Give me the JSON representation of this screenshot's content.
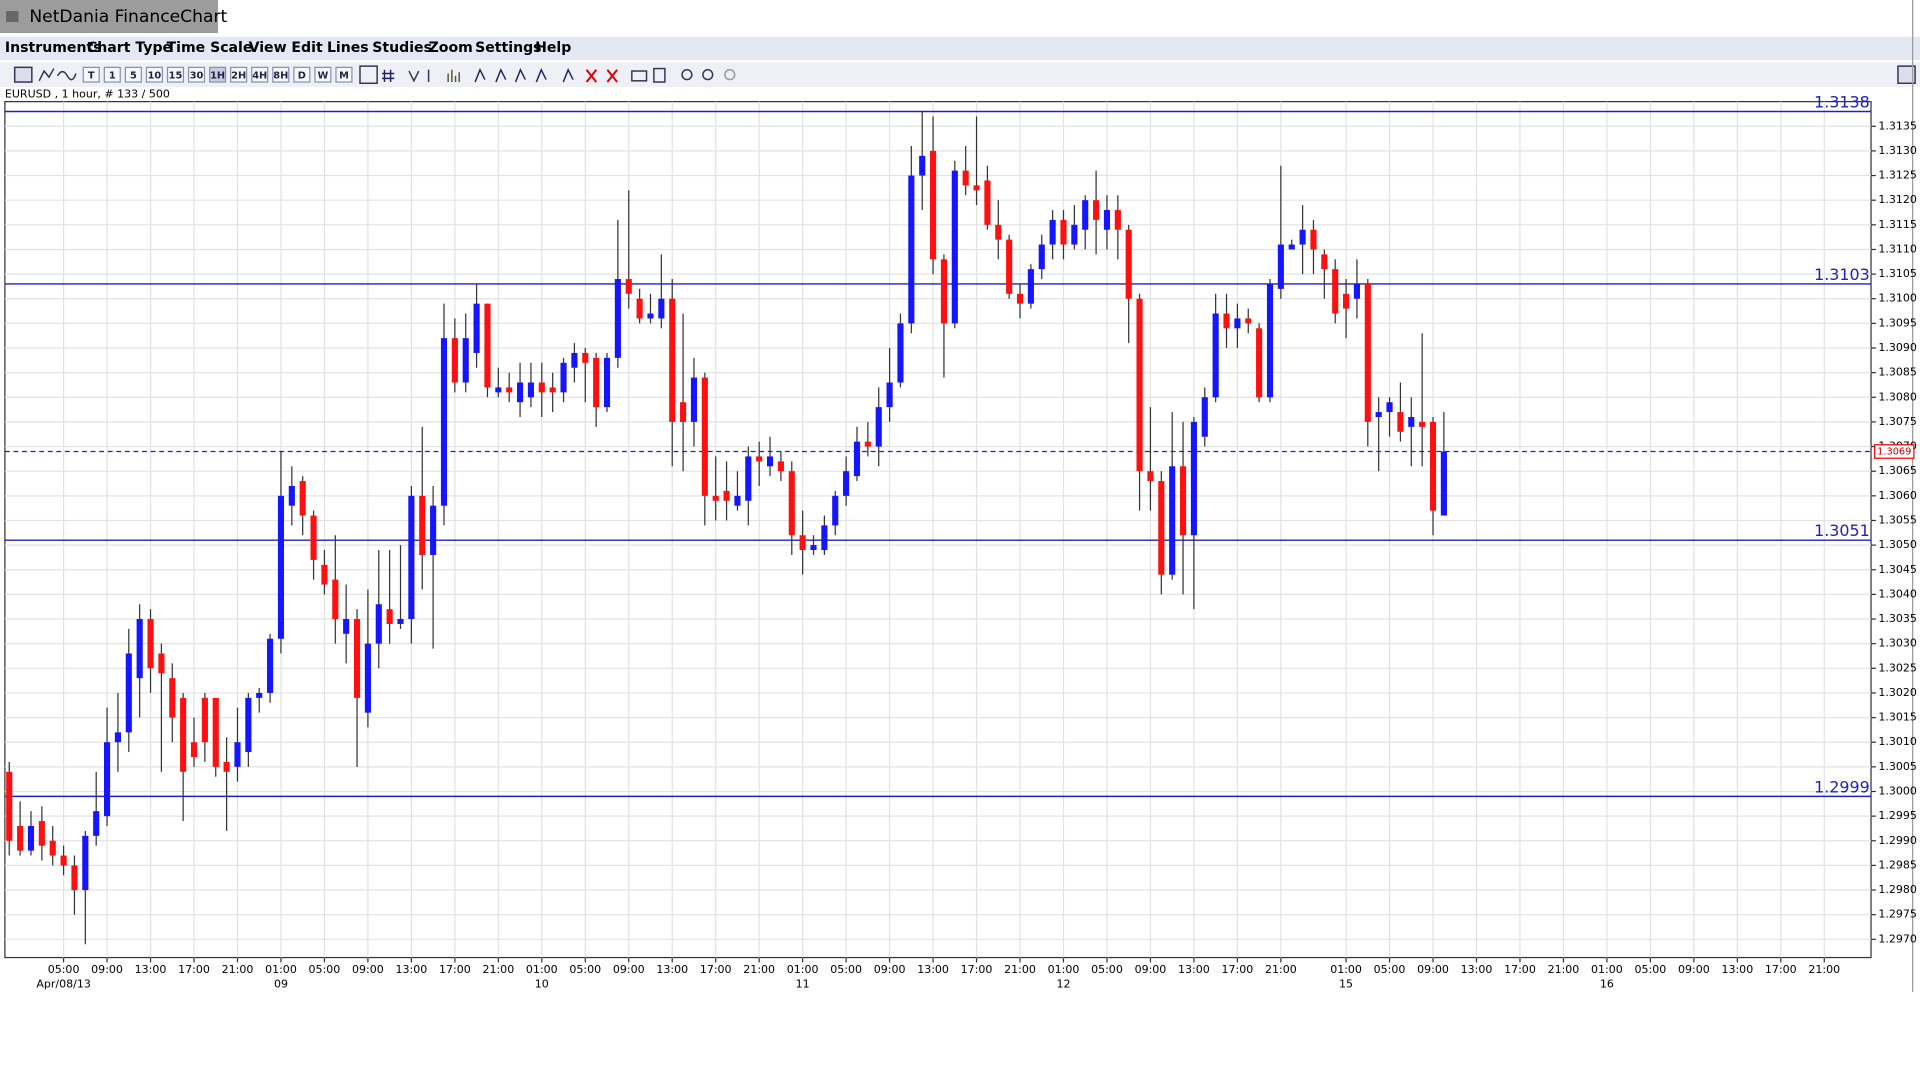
{
  "app_title": "NetDania FinanceChart",
  "menu": [
    "Instruments",
    "Chart Type",
    "Time Scale",
    "View",
    "Edit",
    "Lines",
    "Studies",
    "Zoom",
    "Settings",
    "Help"
  ],
  "toolbar_buttons": [
    "T",
    "1",
    "5",
    "10",
    "15",
    "30",
    "1H",
    "2H",
    "4H",
    "8H",
    "D",
    "W",
    "M"
  ],
  "chart_data": {
    "type": "candlestick",
    "title": "EURUSD , 1 hour, # 133 / 500",
    "up_color": "#1515ff",
    "down_color": "#ff1010",
    "x": [
      0,
      1,
      2,
      3,
      4,
      5,
      6,
      7,
      8,
      9,
      10,
      11,
      12,
      13,
      14,
      15,
      16,
      17,
      18,
      19,
      20,
      21,
      22,
      23,
      24,
      25,
      26,
      27,
      28,
      29,
      30,
      31,
      32,
      33,
      34,
      35,
      36,
      37,
      38,
      39,
      40,
      41,
      42,
      43,
      44,
      45,
      46,
      47,
      48,
      49,
      50,
      51,
      52,
      53,
      54,
      55,
      56,
      57,
      58,
      59,
      60,
      61,
      62,
      63,
      64,
      65,
      66,
      67,
      68,
      69,
      70,
      71,
      72,
      73,
      74,
      75,
      76,
      77,
      78,
      79,
      80,
      81,
      82,
      83,
      84,
      85,
      86,
      87,
      88,
      89,
      90,
      91,
      92,
      93,
      94,
      95,
      96,
      97,
      98,
      99,
      100,
      101,
      102,
      103,
      104,
      105,
      106,
      107,
      108,
      109,
      110,
      111,
      112,
      113,
      114,
      115,
      116,
      117,
      118,
      119,
      120,
      121,
      122,
      123,
      124,
      125,
      126,
      127,
      128,
      129,
      130,
      131,
      132
    ],
    "open": [
      1.3004,
      1.2993,
      1.2988,
      1.2994,
      1.299,
      1.2987,
      1.2985,
      1.298,
      1.2991,
      1.2995,
      1.301,
      1.3012,
      1.3023,
      1.3035,
      1.3028,
      1.3023,
      1.3019,
      1.301,
      1.3019,
      1.3019,
      1.3006,
      1.3005,
      1.3008,
      1.3019,
      1.302,
      1.3031,
      1.3058,
      1.3063,
      1.3056,
      1.3046,
      1.3043,
      1.3032,
      1.3035,
      1.3016,
      1.303,
      1.3037,
      1.3034,
      1.3035,
      1.306,
      1.3048,
      1.3058,
      1.3092,
      1.3083,
      1.3089,
      1.3099,
      1.3081,
      1.3082,
      1.3079,
      1.308,
      1.3083,
      1.3082,
      1.3081,
      1.3086,
      1.3089,
      1.3088,
      1.3078,
      1.3088,
      1.3104,
      1.31,
      1.3096,
      1.3096,
      1.31,
      1.3079,
      1.3075,
      1.3084,
      1.306,
      1.3061,
      1.3058,
      1.3059,
      1.3068,
      1.3066,
      1.3067,
      1.3065,
      1.3052,
      1.3049,
      1.3049,
      1.3054,
      1.306,
      1.3064,
      1.3071,
      1.307,
      1.3078,
      1.3083,
      1.3095,
      1.3125,
      1.313,
      1.3108,
      1.3095,
      1.3126,
      1.3123,
      1.3124,
      1.3115,
      1.3112,
      1.3101,
      1.3099,
      1.3106,
      1.3111,
      1.3116,
      1.3111,
      1.3114,
      1.312,
      1.3114,
      1.3118,
      1.3114,
      1.31,
      1.3065,
      1.3063,
      1.3044,
      1.3066,
      1.3052,
      1.3072,
      1.308,
      1.3097,
      1.3094,
      1.3096,
      1.3094,
      1.308,
      1.3102,
      1.311,
      1.3111,
      1.3114,
      1.3109,
      1.3106,
      1.3101,
      1.31,
      1.3103,
      1.3076,
      1.3077,
      1.3077,
      1.3074,
      1.3075,
      1.3075,
      1.3056
    ],
    "high": [
      1.3006,
      1.2998,
      1.2996,
      1.2997,
      1.2993,
      1.2989,
      1.2987,
      1.2992,
      1.3004,
      1.3017,
      1.302,
      1.3033,
      1.3038,
      1.3037,
      1.303,
      1.3026,
      1.302,
      1.3015,
      1.302,
      1.3019,
      1.3011,
      1.3017,
      1.302,
      1.3021,
      1.3032,
      1.3069,
      1.3066,
      1.3064,
      1.3057,
      1.3049,
      1.3052,
      1.3042,
      1.3037,
      1.3041,
      1.3049,
      1.3049,
      1.305,
      1.3062,
      1.3074,
      1.3062,
      1.3099,
      1.3096,
      1.3097,
      1.3103,
      1.3099,
      1.3086,
      1.3085,
      1.3087,
      1.3087,
      1.3087,
      1.3085,
      1.3088,
      1.3091,
      1.309,
      1.3089,
      1.3089,
      1.3116,
      1.3122,
      1.3102,
      1.3101,
      1.3109,
      1.3104,
      1.3097,
      1.3088,
      1.3085,
      1.3068,
      1.3067,
      1.3065,
      1.307,
      1.3071,
      1.3072,
      1.3069,
      1.3067,
      1.3057,
      1.3052,
      1.3056,
      1.3061,
      1.3068,
      1.3074,
      1.3075,
      1.3082,
      1.309,
      1.3097,
      1.3131,
      1.3138,
      1.3137,
      1.3109,
      1.3128,
      1.3131,
      1.3137,
      1.3127,
      1.312,
      1.3113,
      1.3103,
      1.3107,
      1.3113,
      1.3118,
      1.3118,
      1.3119,
      1.3121,
      1.3126,
      1.3121,
      1.3121,
      1.3115,
      1.3101,
      1.3078,
      1.3065,
      1.3077,
      1.3075,
      1.3076,
      1.3082,
      1.3101,
      1.3101,
      1.3099,
      1.3098,
      1.3095,
      1.3104,
      1.3127,
      1.3112,
      1.3119,
      1.3116,
      1.311,
      1.3108,
      1.3104,
      1.3108,
      1.3104,
      1.308,
      1.308,
      1.3083,
      1.308,
      1.3093,
      1.3076,
      1.3077
    ],
    "low": [
      1.2987,
      1.2987,
      1.2987,
      1.2986,
      1.2985,
      1.2983,
      1.2975,
      1.2969,
      1.2989,
      1.2993,
      1.3004,
      1.3008,
      1.3015,
      1.302,
      1.3004,
      1.301,
      1.2994,
      1.3005,
      1.3006,
      1.3003,
      1.2992,
      1.3002,
      1.3005,
      1.3016,
      1.3018,
      1.3028,
      1.3054,
      1.3052,
      1.3043,
      1.304,
      1.303,
      1.3026,
      1.3005,
      1.3013,
      1.3025,
      1.303,
      1.3033,
      1.303,
      1.3041,
      1.3029,
      1.3054,
      1.3081,
      1.3081,
      1.3086,
      1.308,
      1.308,
      1.3079,
      1.3076,
      1.3078,
      1.3076,
      1.3077,
      1.3079,
      1.3083,
      1.3079,
      1.3074,
      1.3077,
      1.3086,
      1.3098,
      1.3095,
      1.3095,
      1.3094,
      1.3066,
      1.3065,
      1.307,
      1.3054,
      1.3055,
      1.3055,
      1.3057,
      1.3054,
      1.3062,
      1.3064,
      1.3063,
      1.3048,
      1.3044,
      1.3048,
      1.3048,
      1.3052,
      1.3058,
      1.3063,
      1.3068,
      1.3066,
      1.3075,
      1.3082,
      1.3093,
      1.3118,
      1.3105,
      1.3084,
      1.3094,
      1.3121,
      1.3119,
      1.3114,
      1.3108,
      1.31,
      1.3096,
      1.3098,
      1.3104,
      1.3108,
      1.3108,
      1.311,
      1.311,
      1.3109,
      1.311,
      1.3108,
      1.3091,
      1.3057,
      1.3057,
      1.304,
      1.3043,
      1.304,
      1.3037,
      1.307,
      1.3079,
      1.309,
      1.309,
      1.3093,
      1.3079,
      1.3079,
      1.31,
      1.311,
      1.3105,
      1.3105,
      1.31,
      1.3095,
      1.3092,
      1.3096,
      1.307,
      1.3065,
      1.3072,
      1.3071,
      1.3066,
      1.3066,
      1.3052,
      1.3056
    ],
    "close": [
      1.299,
      1.2988,
      1.2993,
      1.2989,
      1.2987,
      1.2985,
      1.298,
      1.2991,
      1.2996,
      1.301,
      1.3012,
      1.3028,
      1.3035,
      1.3025,
      1.3024,
      1.3015,
      1.3004,
      1.3007,
      1.301,
      1.3005,
      1.3004,
      1.301,
      1.3019,
      1.302,
      1.3031,
      1.306,
      1.3062,
      1.3056,
      1.3047,
      1.3042,
      1.3035,
      1.3035,
      1.3019,
      1.303,
      1.3038,
      1.3034,
      1.3035,
      1.306,
      1.3048,
      1.3058,
      1.3092,
      1.3083,
      1.3092,
      1.3099,
      1.3082,
      1.3082,
      1.3081,
      1.3083,
      1.3083,
      1.3081,
      1.3081,
      1.3087,
      1.3089,
      1.3087,
      1.3078,
      1.3088,
      1.3104,
      1.3101,
      1.3096,
      1.3097,
      1.31,
      1.3075,
      1.3075,
      1.3084,
      1.306,
      1.3059,
      1.3059,
      1.306,
      1.3068,
      1.3067,
      1.3068,
      1.3065,
      1.3052,
      1.3049,
      1.305,
      1.3054,
      1.306,
      1.3065,
      1.3071,
      1.307,
      1.3078,
      1.3083,
      1.3095,
      1.3125,
      1.3129,
      1.3108,
      1.3095,
      1.3126,
      1.3123,
      1.3122,
      1.3115,
      1.3112,
      1.3101,
      1.3099,
      1.3106,
      1.3111,
      1.3116,
      1.3111,
      1.3115,
      1.312,
      1.3116,
      1.3118,
      1.3114,
      1.31,
      1.3065,
      1.3063,
      1.3044,
      1.3066,
      1.3052,
      1.3075,
      1.308,
      1.3097,
      1.3094,
      1.3096,
      1.3095,
      1.308,
      1.3103,
      1.3111,
      1.3111,
      1.3114,
      1.311,
      1.3106,
      1.3097,
      1.3098,
      1.3103,
      1.3075,
      1.3077,
      1.3079,
      1.3073,
      1.3076,
      1.3074,
      1.3057,
      1.3069
    ],
    "levels": [
      1.3138,
      1.3103,
      1.3051,
      1.2999
    ],
    "last_price": 1.3069,
    "grid": true,
    "xlim": [
      -0.4,
      171.3
    ],
    "ylim": [
      1.29663,
      1.314
    ],
    "yticks": [
      {
        "value": 1.297,
        "label": "1.2970"
      },
      1.2975,
      {
        "value": 1.298,
        "label": "1.2980"
      },
      1.2985,
      {
        "value": 1.299,
        "label": "1.2990"
      },
      1.2995,
      {
        "value": 1.3,
        "label": "1.3000"
      },
      1.3005,
      {
        "value": 1.301,
        "label": "1.3010"
      },
      1.3015,
      {
        "value": 1.302,
        "label": "1.3020"
      },
      1.3025,
      {
        "value": 1.303,
        "label": "1.3030"
      },
      1.3035,
      {
        "value": 1.304,
        "label": "1.3040"
      },
      1.3045,
      {
        "value": 1.305,
        "label": "1.3050"
      },
      1.3055,
      {
        "value": 1.306,
        "label": "1.3060"
      },
      1.3065,
      {
        "value": 1.307,
        "label": "1.3070"
      },
      1.3075,
      {
        "value": 1.308,
        "label": "1.3080"
      },
      1.3085,
      {
        "value": 1.309,
        "label": "1.3090"
      },
      1.3095,
      {
        "value": 1.31,
        "label": "1.3100"
      },
      1.3105,
      {
        "value": 1.311,
        "label": "1.3110"
      },
      1.3115,
      {
        "value": 1.312,
        "label": "1.3120"
      },
      1.3125,
      {
        "value": 1.313,
        "label": "1.3130"
      },
      1.3135
    ],
    "xticks": [
      {
        "value": 5,
        "label": "05:00"
      },
      {
        "value": 9,
        "label": "09:00"
      },
      {
        "value": 13,
        "label": "13:00"
      },
      {
        "value": 17,
        "label": "17:00"
      },
      {
        "value": 21,
        "label": "21:00"
      },
      {
        "value": 25,
        "label": "01:00"
      },
      {
        "value": 29,
        "label": "05:00"
      },
      {
        "value": 33,
        "label": "09:00"
      },
      {
        "value": 37,
        "label": "13:00"
      },
      {
        "value": 41,
        "label": "17:00"
      },
      {
        "value": 45,
        "label": "21:00"
      },
      {
        "value": 49,
        "label": "01:00"
      },
      {
        "value": 53,
        "label": "05:00"
      },
      {
        "value": 57,
        "label": "09:00"
      },
      {
        "value": 61,
        "label": "13:00"
      },
      {
        "value": 65,
        "label": "17:00"
      },
      {
        "value": 69,
        "label": "21:00"
      },
      {
        "value": 73,
        "label": "01:00"
      },
      {
        "value": 77,
        "label": "05:00"
      },
      {
        "value": 81,
        "label": "09:00"
      },
      {
        "value": 85,
        "label": "13:00"
      },
      {
        "value": 89,
        "label": "17:00"
      },
      {
        "value": 93,
        "label": "21:00"
      },
      {
        "value": 97,
        "label": "01:00"
      },
      {
        "value": 101,
        "label": "05:00"
      },
      {
        "value": 105,
        "label": "09:00"
      },
      {
        "value": 109,
        "label": "13:00"
      },
      {
        "value": 113,
        "label": "17:00"
      },
      {
        "value": 117,
        "label": "21:00"
      },
      {
        "value": 123,
        "label": "01:00"
      },
      {
        "value": 127,
        "label": "05:00"
      },
      {
        "value": 131,
        "label": "09:00"
      },
      {
        "value": 135,
        "label": "13:00"
      },
      {
        "value": 139,
        "label": "17:00"
      },
      {
        "value": 143,
        "label": "21:00"
      },
      {
        "value": 147,
        "label": "01:00"
      },
      {
        "value": 151,
        "label": "05:00"
      },
      {
        "value": 155,
        "label": "09:00"
      },
      {
        "value": 159,
        "label": "13:00"
      },
      {
        "value": 163,
        "label": "17:00"
      },
      {
        "value": 167,
        "label": "21:00"
      }
    ],
    "date_labels": [
      {
        "value": 5,
        "label": "Apr/08/13"
      },
      {
        "value": 25,
        "label": "09"
      },
      {
        "value": 49,
        "label": "10"
      },
      {
        "value": 73,
        "label": "11"
      },
      {
        "value": 97,
        "label": "12"
      },
      {
        "value": 123,
        "label": "15"
      },
      {
        "value": 147,
        "label": "16"
      }
    ]
  }
}
